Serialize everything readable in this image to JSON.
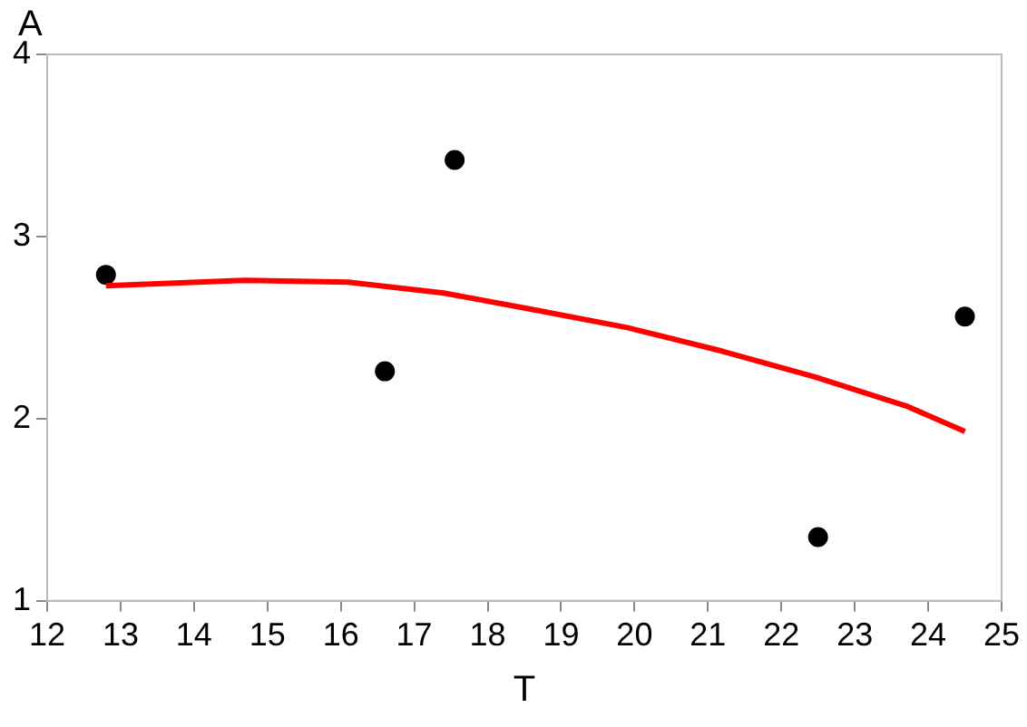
{
  "chart_data": {
    "type": "scatter",
    "xlabel": "T",
    "ylabel": "A",
    "xlim": [
      12,
      25
    ],
    "xticks": [
      12,
      13,
      14,
      15,
      16,
      17,
      18,
      19,
      20,
      21,
      22,
      23,
      24,
      25
    ],
    "ylim": [
      1,
      4
    ],
    "yticks": [
      1,
      2,
      3,
      4
    ],
    "grid": false,
    "legend": false,
    "marker": "circle",
    "series": [
      {
        "type": "scatter",
        "color": "#000000",
        "x": [
          12.8,
          16.6,
          17.55,
          22.5,
          24.5
        ],
        "values": [
          2.79,
          2.26,
          3.42,
          1.35,
          2.56
        ]
      },
      {
        "type": "line",
        "color": "#ff0000",
        "marker": "none",
        "x": [
          12.8,
          14.7,
          16.1,
          17.4,
          18.6,
          19.9,
          21.2,
          22.45,
          23.7,
          24.5
        ],
        "values": [
          2.73,
          2.76,
          2.75,
          2.69,
          2.6,
          2.5,
          2.37,
          2.23,
          2.07,
          1.93
        ]
      }
    ]
  }
}
